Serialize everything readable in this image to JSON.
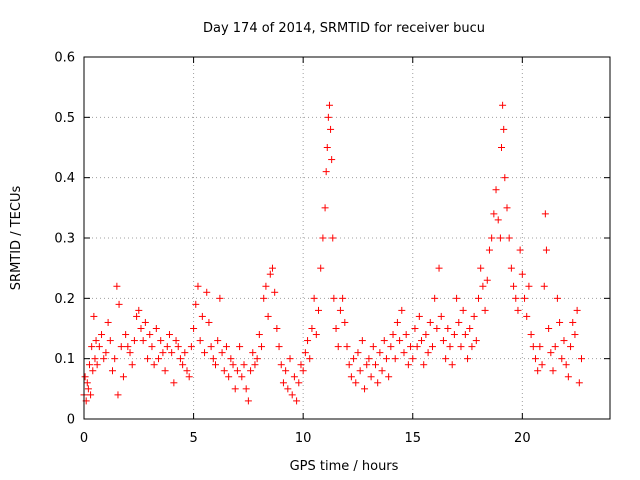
{
  "chart_data": {
    "type": "scatter",
    "title": "Day 174 of 2014, SRMTID for receiver bucu",
    "xlabel": "GPS time / hours",
    "ylabel": "SRMTID / TECUs",
    "xlim": [
      0,
      24
    ],
    "ylim": [
      0,
      0.6
    ],
    "xticks": [
      0,
      5,
      10,
      15,
      20
    ],
    "yticks": [
      0,
      0.1,
      0.2,
      0.3,
      0.4,
      0.5,
      0.6
    ],
    "xtick_labels": [
      "0",
      "5",
      "10",
      "15",
      "20"
    ],
    "ytick_labels": [
      "0",
      "0.1",
      "0.2",
      "0.3",
      "0.4",
      "0.5",
      "0.6"
    ],
    "grid": true,
    "marker": "+",
    "marker_color": "#ff0000",
    "series": [
      {
        "name": "SRMTID",
        "points": [
          [
            0.0,
            0.04
          ],
          [
            0.05,
            0.07
          ],
          [
            0.1,
            0.03
          ],
          [
            0.15,
            0.06
          ],
          [
            0.2,
            0.05
          ],
          [
            0.25,
            0.09
          ],
          [
            0.3,
            0.04
          ],
          [
            0.35,
            0.12
          ],
          [
            0.4,
            0.08
          ],
          [
            0.45,
            0.17
          ],
          [
            0.5,
            0.1
          ],
          [
            0.55,
            0.13
          ],
          [
            0.6,
            0.09
          ],
          [
            0.7,
            0.12
          ],
          [
            0.8,
            0.14
          ],
          [
            0.9,
            0.1
          ],
          [
            1.0,
            0.11
          ],
          [
            1.1,
            0.16
          ],
          [
            1.2,
            0.13
          ],
          [
            1.3,
            0.08
          ],
          [
            1.4,
            0.1
          ],
          [
            1.5,
            0.22
          ],
          [
            1.55,
            0.04
          ],
          [
            1.6,
            0.19
          ],
          [
            1.7,
            0.12
          ],
          [
            1.8,
            0.07
          ],
          [
            1.9,
            0.14
          ],
          [
            2.0,
            0.12
          ],
          [
            2.1,
            0.11
          ],
          [
            2.2,
            0.09
          ],
          [
            2.3,
            0.13
          ],
          [
            2.4,
            0.17
          ],
          [
            2.5,
            0.18
          ],
          [
            2.6,
            0.15
          ],
          [
            2.7,
            0.13
          ],
          [
            2.8,
            0.16
          ],
          [
            2.9,
            0.1
          ],
          [
            3.0,
            0.14
          ],
          [
            3.1,
            0.12
          ],
          [
            3.2,
            0.09
          ],
          [
            3.3,
            0.15
          ],
          [
            3.4,
            0.1
          ],
          [
            3.5,
            0.13
          ],
          [
            3.6,
            0.11
          ],
          [
            3.7,
            0.08
          ],
          [
            3.8,
            0.12
          ],
          [
            3.9,
            0.14
          ],
          [
            4.0,
            0.11
          ],
          [
            4.1,
            0.06
          ],
          [
            4.2,
            0.13
          ],
          [
            4.3,
            0.12
          ],
          [
            4.4,
            0.1
          ],
          [
            4.5,
            0.09
          ],
          [
            4.6,
            0.11
          ],
          [
            4.7,
            0.08
          ],
          [
            4.8,
            0.07
          ],
          [
            4.9,
            0.12
          ],
          [
            5.0,
            0.15
          ],
          [
            5.1,
            0.19
          ],
          [
            5.2,
            0.22
          ],
          [
            5.3,
            0.13
          ],
          [
            5.4,
            0.17
          ],
          [
            5.5,
            0.11
          ],
          [
            5.6,
            0.21
          ],
          [
            5.7,
            0.16
          ],
          [
            5.8,
            0.12
          ],
          [
            5.9,
            0.1
          ],
          [
            6.0,
            0.09
          ],
          [
            6.1,
            0.13
          ],
          [
            6.2,
            0.2
          ],
          [
            6.3,
            0.11
          ],
          [
            6.4,
            0.08
          ],
          [
            6.5,
            0.12
          ],
          [
            6.6,
            0.07
          ],
          [
            6.7,
            0.1
          ],
          [
            6.8,
            0.09
          ],
          [
            6.9,
            0.05
          ],
          [
            7.0,
            0.08
          ],
          [
            7.1,
            0.12
          ],
          [
            7.2,
            0.07
          ],
          [
            7.3,
            0.09
          ],
          [
            7.4,
            0.05
          ],
          [
            7.5,
            0.03
          ],
          [
            7.6,
            0.08
          ],
          [
            7.7,
            0.11
          ],
          [
            7.8,
            0.09
          ],
          [
            7.9,
            0.1
          ],
          [
            8.0,
            0.14
          ],
          [
            8.1,
            0.12
          ],
          [
            8.2,
            0.2
          ],
          [
            8.3,
            0.22
          ],
          [
            8.4,
            0.17
          ],
          [
            8.5,
            0.24
          ],
          [
            8.6,
            0.25
          ],
          [
            8.7,
            0.21
          ],
          [
            8.8,
            0.15
          ],
          [
            8.9,
            0.12
          ],
          [
            9.0,
            0.09
          ],
          [
            9.1,
            0.06
          ],
          [
            9.2,
            0.08
          ],
          [
            9.3,
            0.05
          ],
          [
            9.4,
            0.1
          ],
          [
            9.5,
            0.04
          ],
          [
            9.6,
            0.07
          ],
          [
            9.7,
            0.03
          ],
          [
            9.8,
            0.06
          ],
          [
            9.9,
            0.09
          ],
          [
            10.0,
            0.08
          ],
          [
            10.1,
            0.11
          ],
          [
            10.2,
            0.13
          ],
          [
            10.3,
            0.1
          ],
          [
            10.4,
            0.15
          ],
          [
            10.5,
            0.2
          ],
          [
            10.6,
            0.14
          ],
          [
            10.7,
            0.18
          ],
          [
            10.8,
            0.25
          ],
          [
            10.9,
            0.3
          ],
          [
            11.0,
            0.35
          ],
          [
            11.05,
            0.41
          ],
          [
            11.1,
            0.45
          ],
          [
            11.15,
            0.5
          ],
          [
            11.2,
            0.52
          ],
          [
            11.25,
            0.48
          ],
          [
            11.3,
            0.43
          ],
          [
            11.35,
            0.3
          ],
          [
            11.4,
            0.2
          ],
          [
            11.5,
            0.15
          ],
          [
            11.6,
            0.12
          ],
          [
            11.7,
            0.18
          ],
          [
            11.8,
            0.2
          ],
          [
            11.9,
            0.16
          ],
          [
            12.0,
            0.12
          ],
          [
            12.1,
            0.09
          ],
          [
            12.2,
            0.07
          ],
          [
            12.3,
            0.1
          ],
          [
            12.4,
            0.06
          ],
          [
            12.5,
            0.11
          ],
          [
            12.6,
            0.08
          ],
          [
            12.7,
            0.13
          ],
          [
            12.8,
            0.05
          ],
          [
            12.9,
            0.09
          ],
          [
            13.0,
            0.1
          ],
          [
            13.1,
            0.07
          ],
          [
            13.2,
            0.12
          ],
          [
            13.3,
            0.09
          ],
          [
            13.4,
            0.06
          ],
          [
            13.5,
            0.11
          ],
          [
            13.6,
            0.08
          ],
          [
            13.7,
            0.13
          ],
          [
            13.8,
            0.1
          ],
          [
            13.9,
            0.07
          ],
          [
            14.0,
            0.12
          ],
          [
            14.1,
            0.14
          ],
          [
            14.2,
            0.1
          ],
          [
            14.3,
            0.16
          ],
          [
            14.4,
            0.13
          ],
          [
            14.5,
            0.18
          ],
          [
            14.6,
            0.11
          ],
          [
            14.7,
            0.14
          ],
          [
            14.8,
            0.09
          ],
          [
            14.9,
            0.12
          ],
          [
            15.0,
            0.1
          ],
          [
            15.1,
            0.15
          ],
          [
            15.2,
            0.12
          ],
          [
            15.3,
            0.17
          ],
          [
            15.4,
            0.13
          ],
          [
            15.5,
            0.09
          ],
          [
            15.6,
            0.14
          ],
          [
            15.7,
            0.11
          ],
          [
            15.8,
            0.16
          ],
          [
            15.9,
            0.12
          ],
          [
            16.0,
            0.2
          ],
          [
            16.1,
            0.15
          ],
          [
            16.2,
            0.25
          ],
          [
            16.3,
            0.17
          ],
          [
            16.4,
            0.13
          ],
          [
            16.5,
            0.1
          ],
          [
            16.6,
            0.15
          ],
          [
            16.7,
            0.12
          ],
          [
            16.8,
            0.09
          ],
          [
            16.9,
            0.14
          ],
          [
            17.0,
            0.2
          ],
          [
            17.1,
            0.16
          ],
          [
            17.2,
            0.12
          ],
          [
            17.3,
            0.18
          ],
          [
            17.4,
            0.14
          ],
          [
            17.5,
            0.1
          ],
          [
            17.6,
            0.15
          ],
          [
            17.7,
            0.12
          ],
          [
            17.8,
            0.17
          ],
          [
            17.9,
            0.13
          ],
          [
            18.0,
            0.2
          ],
          [
            18.1,
            0.25
          ],
          [
            18.2,
            0.22
          ],
          [
            18.3,
            0.18
          ],
          [
            18.4,
            0.23
          ],
          [
            18.5,
            0.28
          ],
          [
            18.6,
            0.3
          ],
          [
            18.7,
            0.34
          ],
          [
            18.8,
            0.38
          ],
          [
            18.9,
            0.33
          ],
          [
            19.0,
            0.3
          ],
          [
            19.05,
            0.45
          ],
          [
            19.1,
            0.52
          ],
          [
            19.15,
            0.48
          ],
          [
            19.2,
            0.4
          ],
          [
            19.3,
            0.35
          ],
          [
            19.4,
            0.3
          ],
          [
            19.5,
            0.25
          ],
          [
            19.6,
            0.22
          ],
          [
            19.7,
            0.2
          ],
          [
            19.8,
            0.18
          ],
          [
            19.9,
            0.28
          ],
          [
            20.0,
            0.24
          ],
          [
            20.1,
            0.2
          ],
          [
            20.2,
            0.17
          ],
          [
            20.3,
            0.22
          ],
          [
            20.4,
            0.14
          ],
          [
            20.5,
            0.12
          ],
          [
            20.6,
            0.1
          ],
          [
            20.7,
            0.08
          ],
          [
            20.8,
            0.12
          ],
          [
            20.9,
            0.09
          ],
          [
            21.0,
            0.22
          ],
          [
            21.05,
            0.34
          ],
          [
            21.1,
            0.28
          ],
          [
            21.2,
            0.15
          ],
          [
            21.3,
            0.11
          ],
          [
            21.4,
            0.08
          ],
          [
            21.5,
            0.12
          ],
          [
            21.6,
            0.2
          ],
          [
            21.7,
            0.16
          ],
          [
            21.8,
            0.1
          ],
          [
            21.9,
            0.13
          ],
          [
            22.0,
            0.09
          ],
          [
            22.1,
            0.07
          ],
          [
            22.2,
            0.12
          ],
          [
            22.3,
            0.16
          ],
          [
            22.4,
            0.14
          ],
          [
            22.5,
            0.18
          ],
          [
            22.6,
            0.06
          ],
          [
            22.7,
            0.1
          ]
        ]
      }
    ]
  }
}
